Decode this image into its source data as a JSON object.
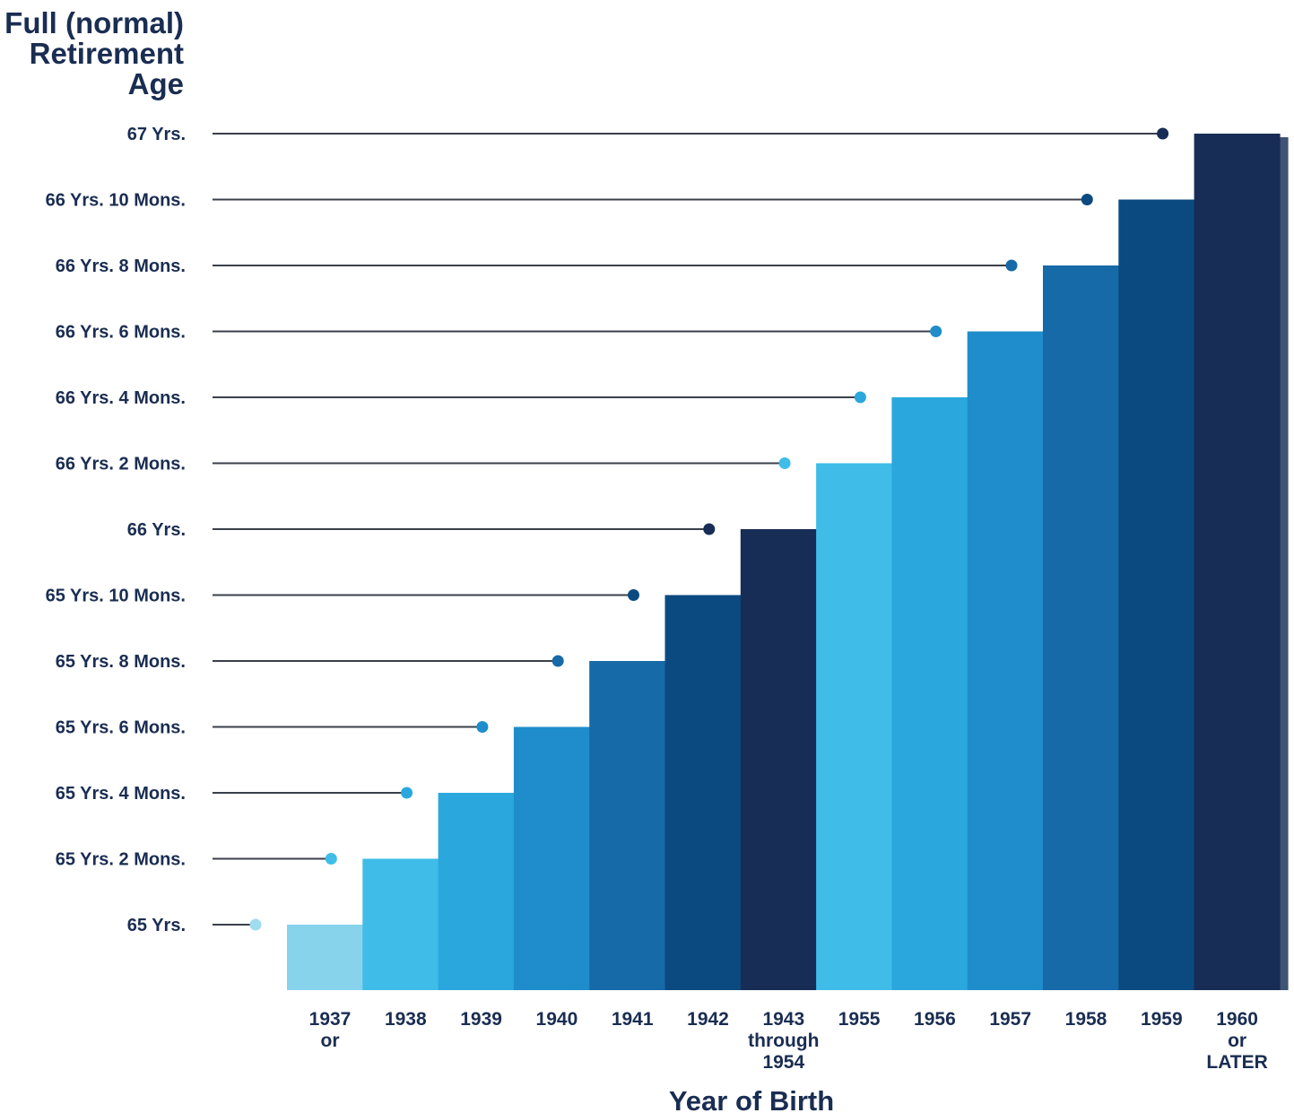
{
  "chart_data": {
    "type": "bar",
    "ylabel": [
      "Full (normal)",
      "Retirement",
      "Age"
    ],
    "xlabel": "Year of Birth",
    "y_ticks": [
      "65 Yrs.",
      "65 Yrs. 2 Mons.",
      "65 Yrs. 4 Mons.",
      "65 Yrs. 6 Mons.",
      "65 Yrs. 8 Mons.",
      "65 Yrs. 10 Mons.",
      "66 Yrs.",
      "66 Yrs. 2 Mons.",
      "66 Yrs. 4 Mons.",
      "66 Yrs. 6 Mons.",
      "66 Yrs. 8 Mons.",
      "66 Yrs. 10 Mons.",
      "67 Yrs."
    ],
    "y_tick_values_months": [
      780,
      782,
      784,
      786,
      788,
      790,
      792,
      794,
      796,
      798,
      800,
      802,
      804
    ],
    "categories": [
      [
        "1937",
        "or"
      ],
      [
        "1938"
      ],
      [
        "1939"
      ],
      [
        "1940"
      ],
      [
        "1941"
      ],
      [
        "1942"
      ],
      [
        "1943",
        "through",
        "1954"
      ],
      [
        "1955"
      ],
      [
        "1956"
      ],
      [
        "1957"
      ],
      [
        "1958"
      ],
      [
        "1959"
      ],
      [
        "1960",
        "or",
        "LATER"
      ]
    ],
    "values_months": [
      780,
      782,
      784,
      786,
      788,
      790,
      792,
      794,
      796,
      798,
      800,
      802,
      804
    ],
    "colors": [
      "#87d3ec",
      "#3fbde8",
      "#2aa8dd",
      "#1f8dcb",
      "#166aa8",
      "#0b4a80",
      "#172d55",
      "#3fbde8",
      "#2aa8dd",
      "#1f8dcb",
      "#166aa8",
      "#0b4a80",
      "#172d55"
    ],
    "dot_colors": [
      "#9fdcf0",
      "#3fbde8",
      "#2aa8dd",
      "#1f8dcb",
      "#166aa8",
      "#0b4a80",
      "#172d55",
      "#3fbde8",
      "#2aa8dd",
      "#1f8dcb",
      "#166aa8",
      "#0b4a80",
      "#172d55"
    ],
    "ylim_months": [
      780,
      804
    ],
    "grid": false,
    "legend": "none"
  }
}
